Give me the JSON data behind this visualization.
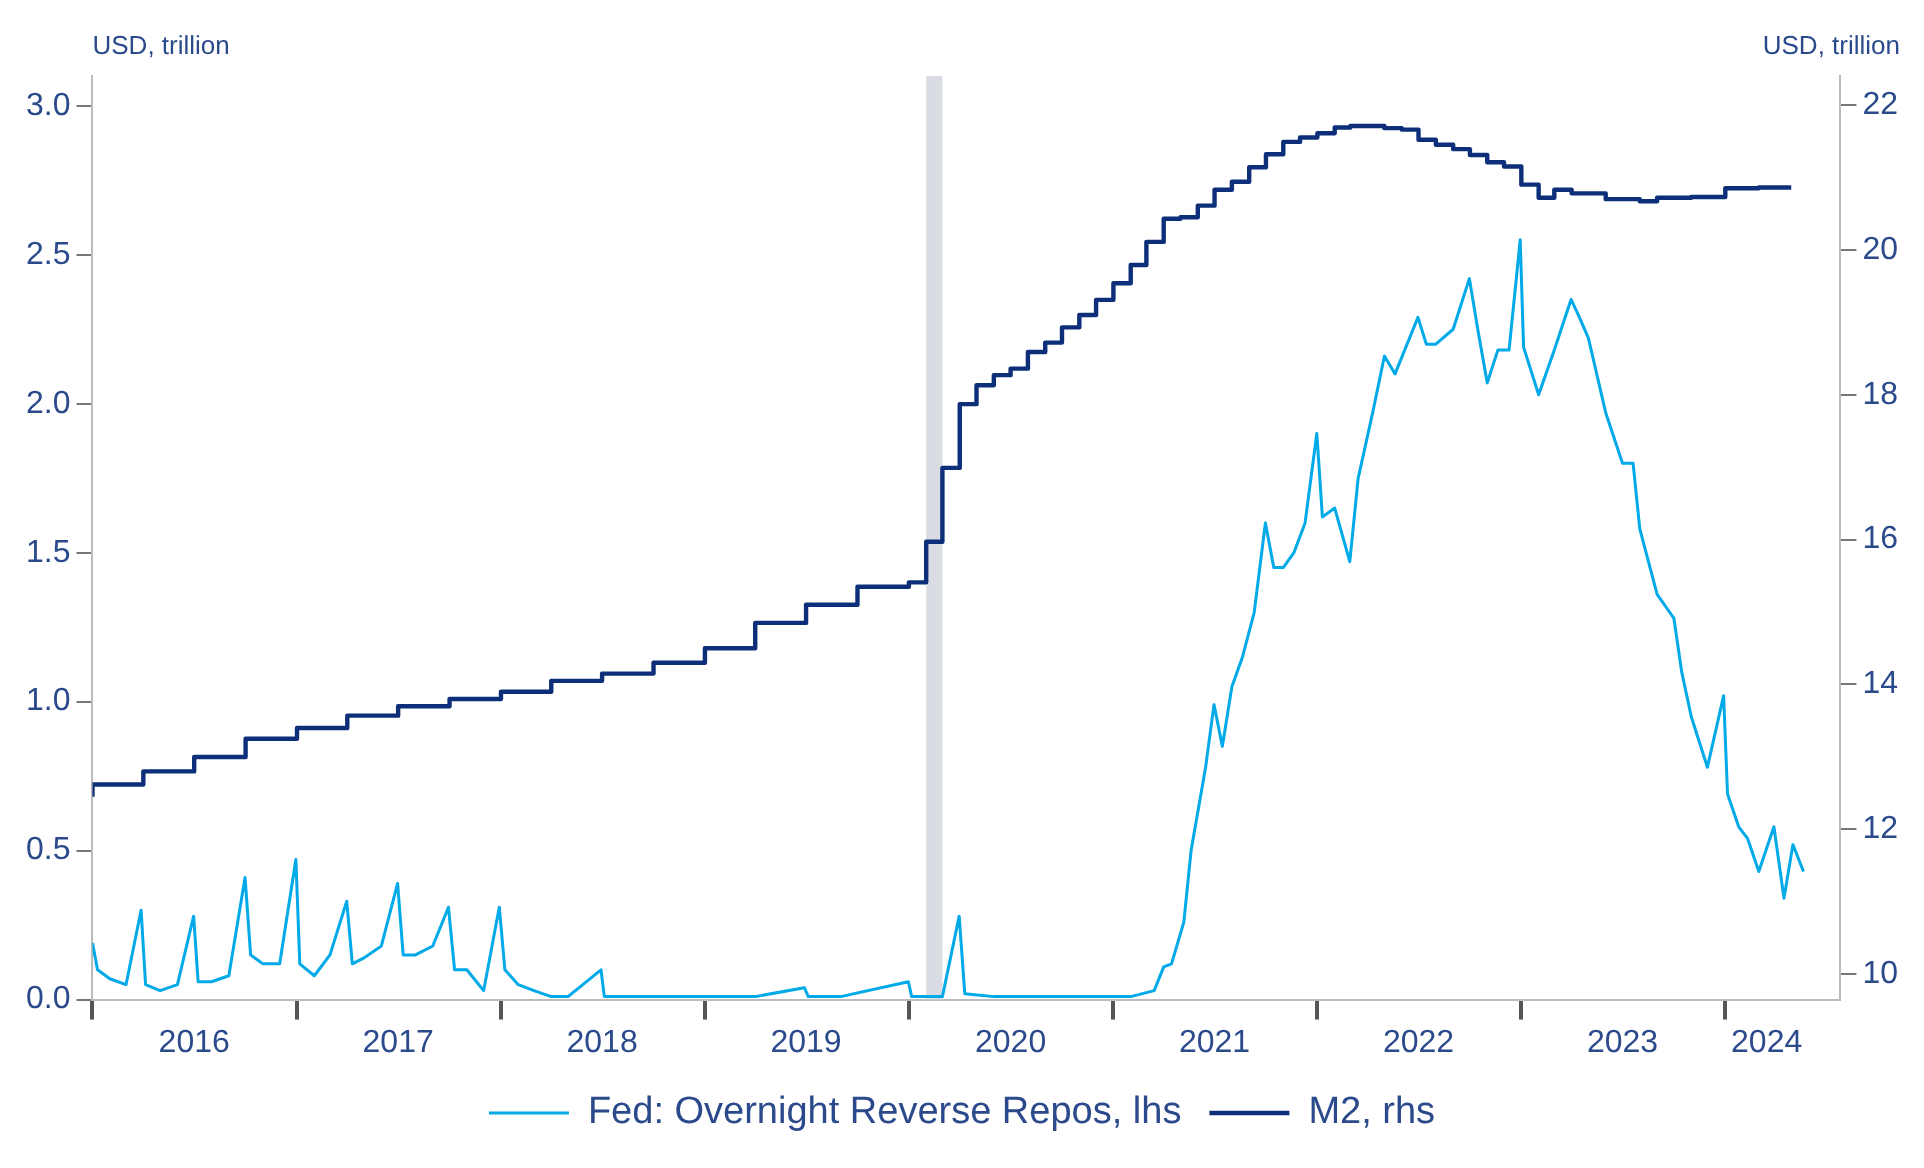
{
  "chart_data": {
    "type": "line",
    "ylabel": "USD, trillion",
    "y2label": "USD, trillion",
    "legend": "bottom",
    "xlim": [
      "2016-01-01",
      "2024-07-25"
    ],
    "xticks": [
      {
        "value": "2016-01-01",
        "label": null
      },
      {
        "value": "2016-07-01",
        "label": "2016"
      },
      {
        "value": "2017-01-01",
        "label": null
      },
      {
        "value": "2017-07-01",
        "label": "2017"
      },
      {
        "value": "2018-01-01",
        "label": null
      },
      {
        "value": "2018-07-01",
        "label": "2018"
      },
      {
        "value": "2019-01-01",
        "label": null
      },
      {
        "value": "2019-07-01",
        "label": "2019"
      },
      {
        "value": "2020-01-01",
        "label": null
      },
      {
        "value": "2020-07-01",
        "label": "2020"
      },
      {
        "value": "2021-01-01",
        "label": null
      },
      {
        "value": "2021-07-01",
        "label": "2021"
      },
      {
        "value": "2022-01-01",
        "label": null
      },
      {
        "value": "2022-07-01",
        "label": "2022"
      },
      {
        "value": "2023-01-01",
        "label": null
      },
      {
        "value": "2023-07-01",
        "label": "2023"
      },
      {
        "value": "2024-01-01",
        "label": null
      },
      {
        "value": "2024-03-15",
        "label": "2024"
      }
    ],
    "ylim": [
      0,
      3.1
    ],
    "yticks": [
      {
        "value": 0,
        "label": "0.0"
      },
      0.5,
      {
        "value": 1,
        "label": "1.0"
      },
      1.5,
      {
        "value": 2,
        "label": "2.0"
      },
      2.5,
      {
        "value": 3,
        "label": "3.0"
      }
    ],
    "y2lim": [
      9.65,
      22.4
    ],
    "y2ticks": [
      10,
      12,
      14,
      16,
      18,
      20,
      22
    ],
    "bands": [
      {
        "axis": "x",
        "from": "2020-02-01",
        "to": "2020-03-01",
        "color": "#d9dde3"
      }
    ],
    "series": [
      {
        "name": "Fed: Overnight Reverse Repos, lhs",
        "type": "line",
        "color": "#00a9e8",
        "x": [
          "2016-01-01",
          "2016-01-10",
          "2016-02-01",
          "2016-03-01",
          "2016-03-28",
          "2016-04-05",
          "2016-05-01",
          "2016-06-01",
          "2016-06-30",
          "2016-07-08",
          "2016-08-01",
          "2016-09-01",
          "2016-09-30",
          "2016-10-10",
          "2016-11-01",
          "2016-12-01",
          "2016-12-30",
          "2017-01-06",
          "2017-02-01",
          "2017-03-01",
          "2017-03-31",
          "2017-04-10",
          "2017-05-01",
          "2017-06-01",
          "2017-06-30",
          "2017-07-10",
          "2017-08-01",
          "2017-09-01",
          "2017-09-29",
          "2017-10-10",
          "2017-11-01",
          "2017-12-01",
          "2017-12-29",
          "2018-01-08",
          "2018-02-01",
          "2018-03-01",
          "2018-04-01",
          "2018-05-01",
          "2018-06-29",
          "2018-07-05",
          "2018-09-01",
          "2018-12-31",
          "2019-01-05",
          "2019-04-01",
          "2019-06-28",
          "2019-07-05",
          "2019-09-01",
          "2019-12-31",
          "2020-01-06",
          "2020-03-01",
          "2020-03-31",
          "2020-04-10",
          "2020-06-01",
          "2020-09-01",
          "2020-12-01",
          "2021-02-01",
          "2021-03-15",
          "2021-04-01",
          "2021-04-15",
          "2021-05-07",
          "2021-05-20",
          "2021-06-15",
          "2021-06-30",
          "2021-07-15",
          "2021-08-01",
          "2021-08-20",
          "2021-09-10",
          "2021-09-30",
          "2021-10-15",
          "2021-11-01",
          "2021-11-20",
          "2021-12-10",
          "2021-12-31",
          "2022-01-10",
          "2022-02-01",
          "2022-02-28",
          "2022-03-15",
          "2022-04-10",
          "2022-05-01",
          "2022-05-20",
          "2022-06-30",
          "2022-07-15",
          "2022-08-01",
          "2022-09-01",
          "2022-09-30",
          "2022-10-15",
          "2022-11-01",
          "2022-11-20",
          "2022-12-10",
          "2022-12-30",
          "2023-01-05",
          "2023-02-01",
          "2023-03-01",
          "2023-03-31",
          "2023-04-15",
          "2023-05-01",
          "2023-06-01",
          "2023-07-01",
          "2023-07-20",
          "2023-08-01",
          "2023-09-01",
          "2023-10-01",
          "2023-10-15",
          "2023-11-01",
          "2023-11-30",
          "2023-12-29",
          "2024-01-05",
          "2024-01-25",
          "2024-02-10",
          "2024-03-01",
          "2024-03-28",
          "2024-04-15",
          "2024-05-01",
          "2024-05-20"
        ],
        "values": [
          0.19,
          0.1,
          0.07,
          0.05,
          0.3,
          0.05,
          0.03,
          0.05,
          0.28,
          0.06,
          0.06,
          0.08,
          0.41,
          0.15,
          0.12,
          0.12,
          0.47,
          0.12,
          0.08,
          0.15,
          0.33,
          0.12,
          0.14,
          0.18,
          0.39,
          0.15,
          0.15,
          0.18,
          0.31,
          0.1,
          0.1,
          0.03,
          0.31,
          0.1,
          0.05,
          0.03,
          0.01,
          0.01,
          0.1,
          0.01,
          0.01,
          0.01,
          0.01,
          0.01,
          0.04,
          0.01,
          0.01,
          0.06,
          0.01,
          0.01,
          0.28,
          0.02,
          0.01,
          0.01,
          0.01,
          0.01,
          0.03,
          0.11,
          0.12,
          0.26,
          0.5,
          0.78,
          0.99,
          0.85,
          1.05,
          1.15,
          1.3,
          1.6,
          1.45,
          1.45,
          1.5,
          1.6,
          1.9,
          1.62,
          1.65,
          1.47,
          1.75,
          1.97,
          2.16,
          2.1,
          2.29,
          2.2,
          2.2,
          2.25,
          2.42,
          2.25,
          2.07,
          2.18,
          2.18,
          2.55,
          2.19,
          2.03,
          2.18,
          2.35,
          2.29,
          2.22,
          1.97,
          1.8,
          1.8,
          1.58,
          1.36,
          1.28,
          1.1,
          0.95,
          0.78,
          1.02,
          0.69,
          0.58,
          0.54,
          0.43,
          0.58,
          0.34,
          0.52,
          0.43
        ]
      },
      {
        "name": "M2, rhs",
        "type": "step",
        "axis": "y2",
        "color": "#0d2f7a",
        "x": [
          "2016-01",
          "2016-04",
          "2016-07",
          "2016-10",
          "2017-01",
          "2017-04",
          "2017-07",
          "2017-10",
          "2018-01",
          "2018-04",
          "2018-07",
          "2018-10",
          "2019-01",
          "2019-04",
          "2019-07",
          "2019-10",
          "2020-01",
          "2020-02",
          "2020-03",
          "2020-04",
          "2020-05",
          "2020-06",
          "2020-07",
          "2020-08",
          "2020-09",
          "2020-10",
          "2020-11",
          "2020-12",
          "2021-01",
          "2021-02",
          "2021-03",
          "2021-04",
          "2021-05",
          "2021-06",
          "2021-07",
          "2021-08",
          "2021-09",
          "2021-10",
          "2021-11",
          "2021-12",
          "2022-01",
          "2022-02",
          "2022-03",
          "2022-04",
          "2022-05",
          "2022-06",
          "2022-07",
          "2022-08",
          "2022-09",
          "2022-10",
          "2022-11",
          "2022-12",
          "2023-01",
          "2023-02",
          "2023-03",
          "2023-04",
          "2023-06",
          "2023-08",
          "2023-09",
          "2023-11",
          "2024-01",
          "2024-03",
          "2024-04",
          "2024-04-28"
        ],
        "values": [
          12.45,
          12.62,
          12.8,
          13.0,
          13.25,
          13.4,
          13.57,
          13.7,
          13.8,
          13.9,
          14.05,
          14.15,
          14.3,
          14.5,
          14.85,
          15.1,
          15.35,
          15.41,
          15.97,
          16.99,
          17.87,
          18.13,
          18.27,
          18.36,
          18.59,
          18.72,
          18.93,
          19.1,
          19.31,
          19.54,
          19.79,
          20.11,
          20.43,
          20.45,
          20.61,
          20.83,
          20.94,
          21.14,
          21.32,
          21.49,
          21.55,
          21.61,
          21.69,
          21.71,
          21.71,
          21.68,
          21.66,
          21.52,
          21.45,
          21.39,
          21.31,
          21.21,
          21.15,
          20.9,
          20.72,
          20.83,
          20.78,
          20.7,
          20.67,
          20.72,
          20.73,
          20.85,
          20.86,
          20.86
        ]
      }
    ]
  }
}
